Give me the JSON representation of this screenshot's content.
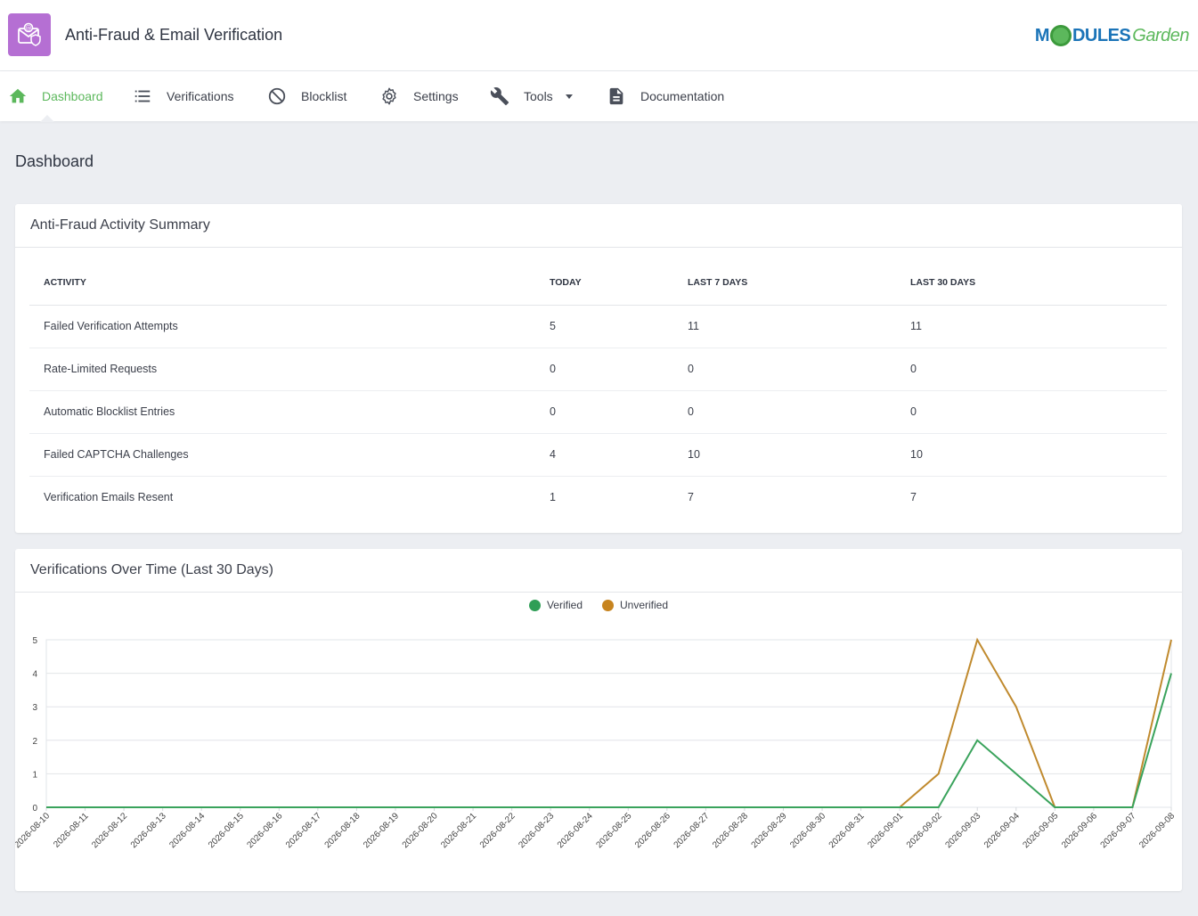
{
  "app": {
    "title": "Anti-Fraud & Email Verification",
    "brand_text_a": "M",
    "brand_text_b": "DULES",
    "brand_text_c": "Garden",
    "accent": "#5cb85c",
    "logo_bg": "#b56fd3"
  },
  "nav": {
    "items": [
      {
        "label": "Dashboard",
        "icon": "home-icon"
      },
      {
        "label": "Verifications",
        "icon": "list-icon"
      },
      {
        "label": "Blocklist",
        "icon": "block-icon"
      },
      {
        "label": "Settings",
        "icon": "gear-icon"
      },
      {
        "label": "Tools",
        "icon": "wrench-icon"
      },
      {
        "label": "Documentation",
        "icon": "document-icon"
      }
    ]
  },
  "page": {
    "title": "Dashboard"
  },
  "summary": {
    "title": "Anti-Fraud Activity Summary",
    "columns": [
      "Activity",
      "Today",
      "Last 7 Days",
      "Last 30 Days"
    ],
    "rows": [
      [
        "Failed Verification Attempts",
        "5",
        "11",
        "11"
      ],
      [
        "Rate-Limited Requests",
        "0",
        "0",
        "0"
      ],
      [
        "Automatic Blocklist Entries",
        "0",
        "0",
        "0"
      ],
      [
        "Failed CAPTCHA Challenges",
        "4",
        "10",
        "10"
      ],
      [
        "Verification Emails Resent",
        "1",
        "7",
        "7"
      ]
    ]
  },
  "chart_panel": {
    "title": "Verifications Over Time (Last 30 Days)"
  },
  "chart_data": {
    "type": "line",
    "x": [
      "2026-08-10",
      "2026-08-11",
      "2026-08-12",
      "2026-08-13",
      "2026-08-14",
      "2026-08-15",
      "2026-08-16",
      "2026-08-17",
      "2026-08-18",
      "2026-08-19",
      "2026-08-20",
      "2026-08-21",
      "2026-08-22",
      "2026-08-23",
      "2026-08-24",
      "2026-08-25",
      "2026-08-26",
      "2026-08-27",
      "2026-08-28",
      "2026-08-29",
      "2026-08-30",
      "2026-08-31",
      "2026-09-01",
      "2026-09-02",
      "2026-09-03",
      "2026-09-04",
      "2026-09-05",
      "2026-09-06",
      "2026-09-07",
      "2026-09-08"
    ],
    "series": [
      {
        "name": "Verified",
        "color": "#3aa35c",
        "values": [
          0,
          0,
          0,
          0,
          0,
          0,
          0,
          0,
          0,
          0,
          0,
          0,
          0,
          0,
          0,
          0,
          0,
          0,
          0,
          0,
          0,
          0,
          0,
          0,
          2,
          1,
          0,
          0,
          0,
          4
        ]
      },
      {
        "name": "Unverified",
        "color": "#c08a2e",
        "values": [
          0,
          0,
          0,
          0,
          0,
          0,
          0,
          0,
          0,
          0,
          0,
          0,
          0,
          0,
          0,
          0,
          0,
          0,
          0,
          0,
          0,
          0,
          0,
          1,
          5,
          3,
          0,
          0,
          0,
          5
        ]
      }
    ],
    "title": "",
    "xlabel": "",
    "ylabel": "",
    "ylim": [
      0,
      5
    ],
    "yticks": [
      0,
      1,
      2,
      3,
      4,
      5
    ],
    "grid": true,
    "legend": "top-center"
  }
}
